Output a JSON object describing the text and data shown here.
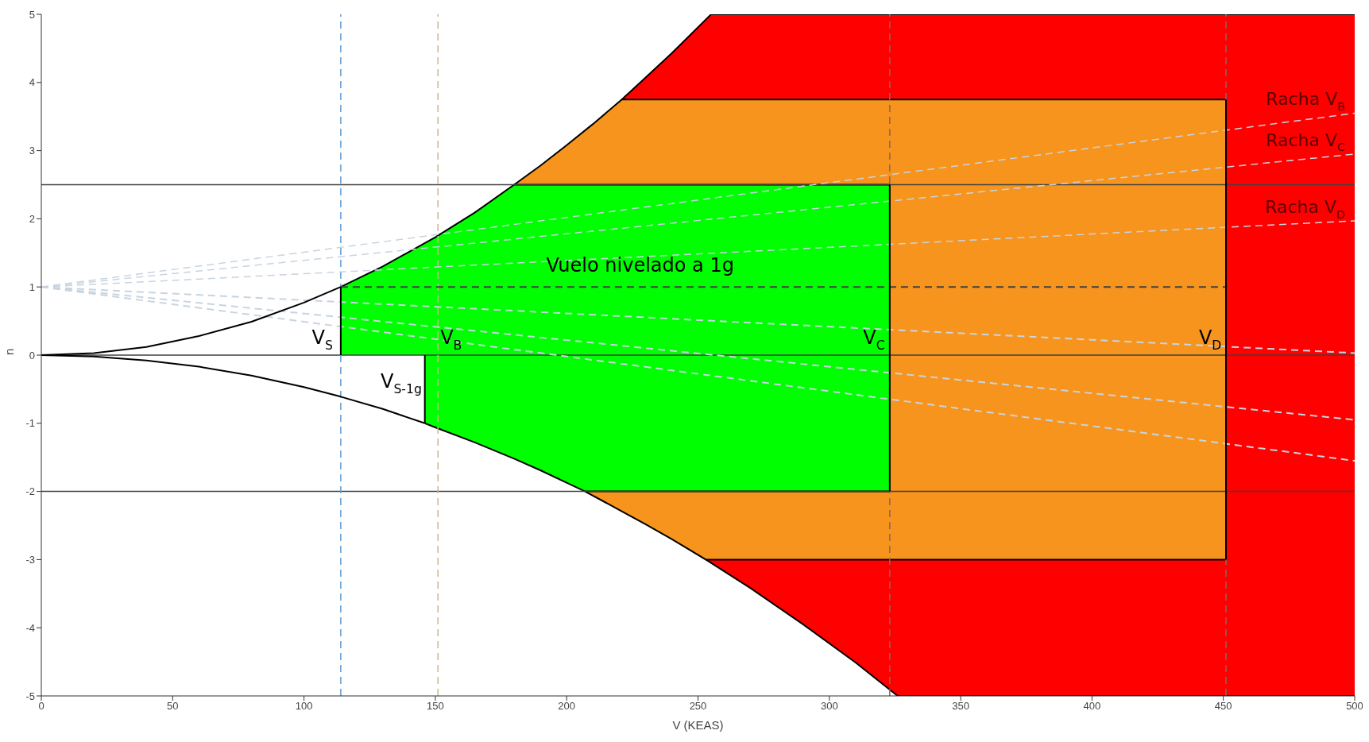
{
  "chart_data": {
    "type": "area",
    "xlabel": "V (KEAS)",
    "ylabel": "n",
    "xlim": [
      0,
      500
    ],
    "ylim": [
      -5,
      5
    ],
    "xticks": [
      0,
      50,
      100,
      150,
      200,
      250,
      300,
      350,
      400,
      450,
      500
    ],
    "yticks": [
      -5,
      -4,
      -3,
      -2,
      -1,
      0,
      1,
      2,
      3,
      4,
      5
    ],
    "series": [
      {
        "color": "#ff0000",
        "x": [
          221,
          230,
          240,
          255,
          300,
          500
        ],
        "values": [
          3.75,
          4.07,
          4.43,
          5,
          5,
          5
        ]
      },
      {
        "color": "#ff0000",
        "x": [
          253,
          270,
          290,
          310,
          326,
          400,
          500
        ],
        "values": [
          -3,
          -3.42,
          -3.95,
          -4.51,
          -5,
          -5,
          -5
        ]
      },
      {
        "color": "#f7941d",
        "x": [
          180,
          190,
          200,
          210,
          221,
          300,
          451
        ],
        "values": [
          2.5,
          2.78,
          3.08,
          3.39,
          3.75,
          3.75,
          3.75
        ]
      },
      {
        "color": "#f7941d",
        "x": [
          207,
          220,
          230,
          240,
          253,
          300,
          451
        ],
        "values": [
          -2,
          -2.27,
          -2.48,
          -2.7,
          -3,
          -3,
          -3
        ]
      },
      {
        "color": "#00ff00",
        "x": [
          114,
          130,
          150,
          165,
          180,
          250,
          323
        ],
        "values": [
          1,
          1.3,
          1.73,
          2.09,
          2.5,
          2.5,
          2.5
        ]
      },
      {
        "color": "#00ff00",
        "x": [
          146,
          150,
          165,
          180,
          190,
          207,
          250,
          323
        ],
        "values": [
          -1,
          -1.06,
          -1.28,
          -1.52,
          -1.69,
          -2,
          -2,
          -2
        ]
      },
      {
        "type": "line",
        "color": "#c8d4e0",
        "line_style": "dashed",
        "name": "Racha V$_{B}$",
        "x": [
          0,
          500
        ],
        "values": [
          1,
          3.55
        ]
      },
      {
        "type": "line",
        "color": "#c8d4e0",
        "line_style": "dashed",
        "name": "Racha V$_{C}$",
        "x": [
          0,
          500
        ],
        "values": [
          1,
          2.95
        ]
      },
      {
        "type": "line",
        "color": "#c8d4e0",
        "line_style": "dashed",
        "name": "Racha V$_{D}$",
        "x": [
          0,
          500
        ],
        "values": [
          1,
          1.97
        ]
      },
      {
        "type": "line",
        "color": "#c8d4e0",
        "line_style": "dashed",
        "x": [
          0,
          500
        ],
        "values": [
          1,
          0.03
        ]
      },
      {
        "type": "line",
        "color": "#c8d4e0",
        "line_style": "dashed",
        "x": [
          0,
          500
        ],
        "values": [
          1,
          -0.95
        ]
      },
      {
        "type": "line",
        "color": "#c8d4e0",
        "line_style": "dashed",
        "x": [
          0,
          500
        ],
        "values": [
          1,
          -1.55
        ]
      },
      {
        "type": "line",
        "color": "#404040",
        "line_style": "dashed",
        "x": [
          114,
          451
        ],
        "values": [
          1,
          1
        ]
      },
      {
        "type": "line",
        "color": "#000000",
        "x": [
          0,
          20,
          40,
          60,
          80,
          100,
          114
        ],
        "values": [
          0,
          0.03,
          0.12,
          0.28,
          0.49,
          0.77,
          1
        ]
      },
      {
        "type": "line",
        "color": "#000000",
        "x": [
          0,
          20,
          40,
          60,
          80,
          100,
          114,
          130,
          146
        ],
        "values": [
          0,
          -0.02,
          -0.08,
          -0.17,
          -0.3,
          -0.47,
          -0.61,
          -0.79,
          -1
        ]
      },
      {
        "type": "line",
        "color": "#000000",
        "x": [
          114,
          114
        ],
        "values": [
          0,
          1
        ]
      },
      {
        "type": "line",
        "color": "#000000",
        "x": [
          146,
          146
        ],
        "values": [
          -1,
          0
        ]
      },
      {
        "type": "line",
        "color": "#000000",
        "x": [
          323,
          323
        ],
        "values": [
          -2,
          2.5
        ]
      },
      {
        "type": "line",
        "color": "#000000",
        "x": [
          451,
          451
        ],
        "values": [
          -3,
          3.75
        ]
      }
    ],
    "ref_lines": [
      {
        "axis": "y",
        "value": 2.5,
        "color": "#404040"
      },
      {
        "axis": "y",
        "value": 0,
        "color": "#404040"
      },
      {
        "axis": "y",
        "value": -2,
        "color": "#404040"
      },
      {
        "axis": "x",
        "value": 114,
        "color": "#5b9bd5",
        "line_style": "dashed"
      },
      {
        "axis": "x",
        "value": 151,
        "color": "#c8b88a",
        "line_style": "dashed"
      },
      {
        "axis": "x",
        "value": 323,
        "color": "#8c6464",
        "line_style": "dashed"
      },
      {
        "axis": "x",
        "value": 451,
        "color": "#8c6464",
        "line_style": "dashed"
      }
    ],
    "annotations": [
      {
        "text": "V$_{S}$",
        "x": 107,
        "y": 0
      },
      {
        "text": "V$_{B}$",
        "x": 156,
        "y": 0
      },
      {
        "text": "V$_{C}$",
        "x": 317,
        "y": 0
      },
      {
        "text": "V$_{D}$",
        "x": 445,
        "y": 0
      },
      "V$_{S-1g}$",
      "Vuelo nivelado a 1g"
    ]
  }
}
